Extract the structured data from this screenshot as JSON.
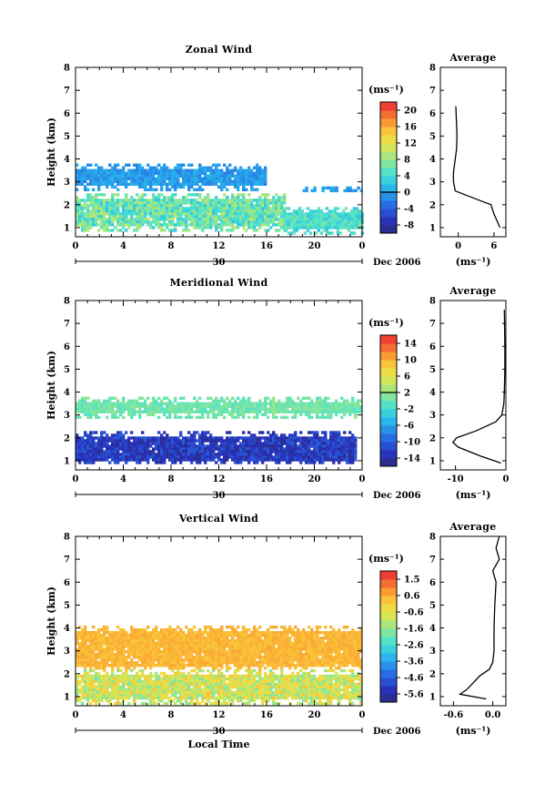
{
  "chart_data": [
    {
      "type": "heatmap",
      "title": "Zonal Wind",
      "ylabel": "Height (km)",
      "x_ticks": [
        "0",
        "4",
        "8",
        "12",
        "16",
        "20",
        "0"
      ],
      "y_ticks": [
        "1",
        "2",
        "3",
        "4",
        "5",
        "6",
        "7",
        "8"
      ],
      "xlim": [
        0,
        24
      ],
      "ylim": [
        0.6,
        8
      ],
      "date_day": "30",
      "date_label": "Dec 2006",
      "colorbar": {
        "unit": "(ms⁻¹)",
        "ticks": [
          "20",
          "16",
          "12",
          "8",
          "4",
          "0",
          "-4",
          "-8"
        ],
        "range": [
          -10,
          22
        ],
        "zero_line": 0
      },
      "regions": [
        {
          "x0": 0,
          "x1": 17.5,
          "y0": 0.9,
          "y1": 2.5,
          "range": [
            2,
            10
          ]
        },
        {
          "x0": 17.5,
          "x1": 24,
          "y0": 0.8,
          "y1": 1.9,
          "range": [
            2,
            7
          ]
        },
        {
          "x0": 0,
          "x1": 15.8,
          "y0": 2.7,
          "y1": 3.8,
          "range": [
            -2,
            1
          ]
        },
        {
          "x0": 19,
          "x1": 24,
          "y0": 2.6,
          "y1": 2.8,
          "range": [
            -2,
            1
          ]
        }
      ],
      "average_profile": {
        "title": "Average",
        "xlabel": "(ms⁻¹)",
        "x_ticks": [
          "0",
          "6"
        ],
        "xlim": [
          -3,
          8
        ],
        "height": [
          1.0,
          1.3,
          1.6,
          2.0,
          2.2,
          2.4,
          2.6,
          3.0,
          3.4,
          3.8,
          4.4,
          5.0,
          6.3
        ],
        "value": [
          7.0,
          6.5,
          6.0,
          5.5,
          3.5,
          1.5,
          -0.5,
          -0.8,
          -0.8,
          -0.6,
          -0.3,
          -0.2,
          -0.4
        ]
      }
    },
    {
      "type": "heatmap",
      "title": "Meridional Wind",
      "ylabel": "Height (km)",
      "x_ticks": [
        "0",
        "4",
        "8",
        "12",
        "16",
        "20",
        "0"
      ],
      "y_ticks": [
        "1",
        "2",
        "3",
        "4",
        "5",
        "6",
        "7",
        "8"
      ],
      "xlim": [
        0,
        24
      ],
      "ylim": [
        0.6,
        8
      ],
      "date_day": "30",
      "date_label": "Dec 2006",
      "colorbar": {
        "unit": "(ms⁻¹)",
        "ticks": [
          "14",
          "10",
          "6",
          "2",
          "-2",
          "-6",
          "-10",
          "-14"
        ],
        "range": [
          -16,
          16
        ],
        "zero_line": 2
      },
      "regions": [
        {
          "x0": 0,
          "x1": 23.5,
          "y0": 0.9,
          "y1": 2.3,
          "range": [
            -15,
            -10
          ]
        },
        {
          "x0": 0,
          "x1": 24,
          "y0": 2.9,
          "y1": 3.8,
          "range": [
            -1,
            2
          ]
        }
      ],
      "average_profile": {
        "title": "Average",
        "xlabel": "(ms⁻¹)",
        "x_ticks": [
          "-10",
          "0"
        ],
        "xlim": [
          -13,
          0
        ],
        "height": [
          0.9,
          1.2,
          1.6,
          1.8,
          2.0,
          2.3,
          2.7,
          3.0,
          3.5,
          4.0,
          5.0,
          6.0,
          7.6
        ],
        "value": [
          -1.0,
          -5.0,
          -9.5,
          -10.5,
          -9.8,
          -6.0,
          -2.0,
          -0.8,
          -0.4,
          -0.3,
          -0.2,
          -0.2,
          -0.3
        ]
      }
    },
    {
      "type": "heatmap",
      "title": "Vertical Wind",
      "ylabel": "Height (km)",
      "xlabel": "Local Time",
      "x_ticks": [
        "0",
        "4",
        "8",
        "12",
        "16",
        "20",
        "0"
      ],
      "y_ticks": [
        "1",
        "2",
        "3",
        "4",
        "5",
        "6",
        "7",
        "8"
      ],
      "xlim": [
        0,
        24
      ],
      "ylim": [
        0.6,
        8
      ],
      "date_day": "30",
      "date_label": "Dec 2006",
      "colorbar": {
        "unit": "(ms⁻¹)",
        "ticks": [
          "1.5",
          "0.6",
          "-0.6",
          "-1.6",
          "-2.6",
          "-3.6",
          "-4.6",
          "-5.6"
        ],
        "range": [
          -6,
          2
        ],
        "zero_line": null
      },
      "regions": [
        {
          "x0": 0,
          "x1": 24,
          "y0": 0.7,
          "y1": 2.2,
          "range": [
            -1.8,
            0.3
          ]
        },
        {
          "x0": 0,
          "x1": 24,
          "y0": 2.2,
          "y1": 4.1,
          "range": [
            0.2,
            0.6
          ]
        }
      ],
      "average_profile": {
        "title": "Average",
        "xlabel": "(ms⁻¹)",
        "x_ticks": [
          "-0.6",
          "0.0"
        ],
        "xlim": [
          -0.8,
          0.2
        ],
        "height": [
          0.9,
          1.1,
          1.3,
          1.6,
          1.9,
          2.2,
          2.5,
          3.0,
          4.0,
          5.0,
          6.0,
          6.5,
          7.0,
          7.5,
          8.0
        ],
        "value": [
          -0.1,
          -0.5,
          -0.4,
          -0.3,
          -0.2,
          -0.05,
          0.0,
          0.02,
          0.02,
          0.03,
          0.05,
          0.0,
          0.1,
          0.05,
          0.1
        ]
      }
    }
  ]
}
